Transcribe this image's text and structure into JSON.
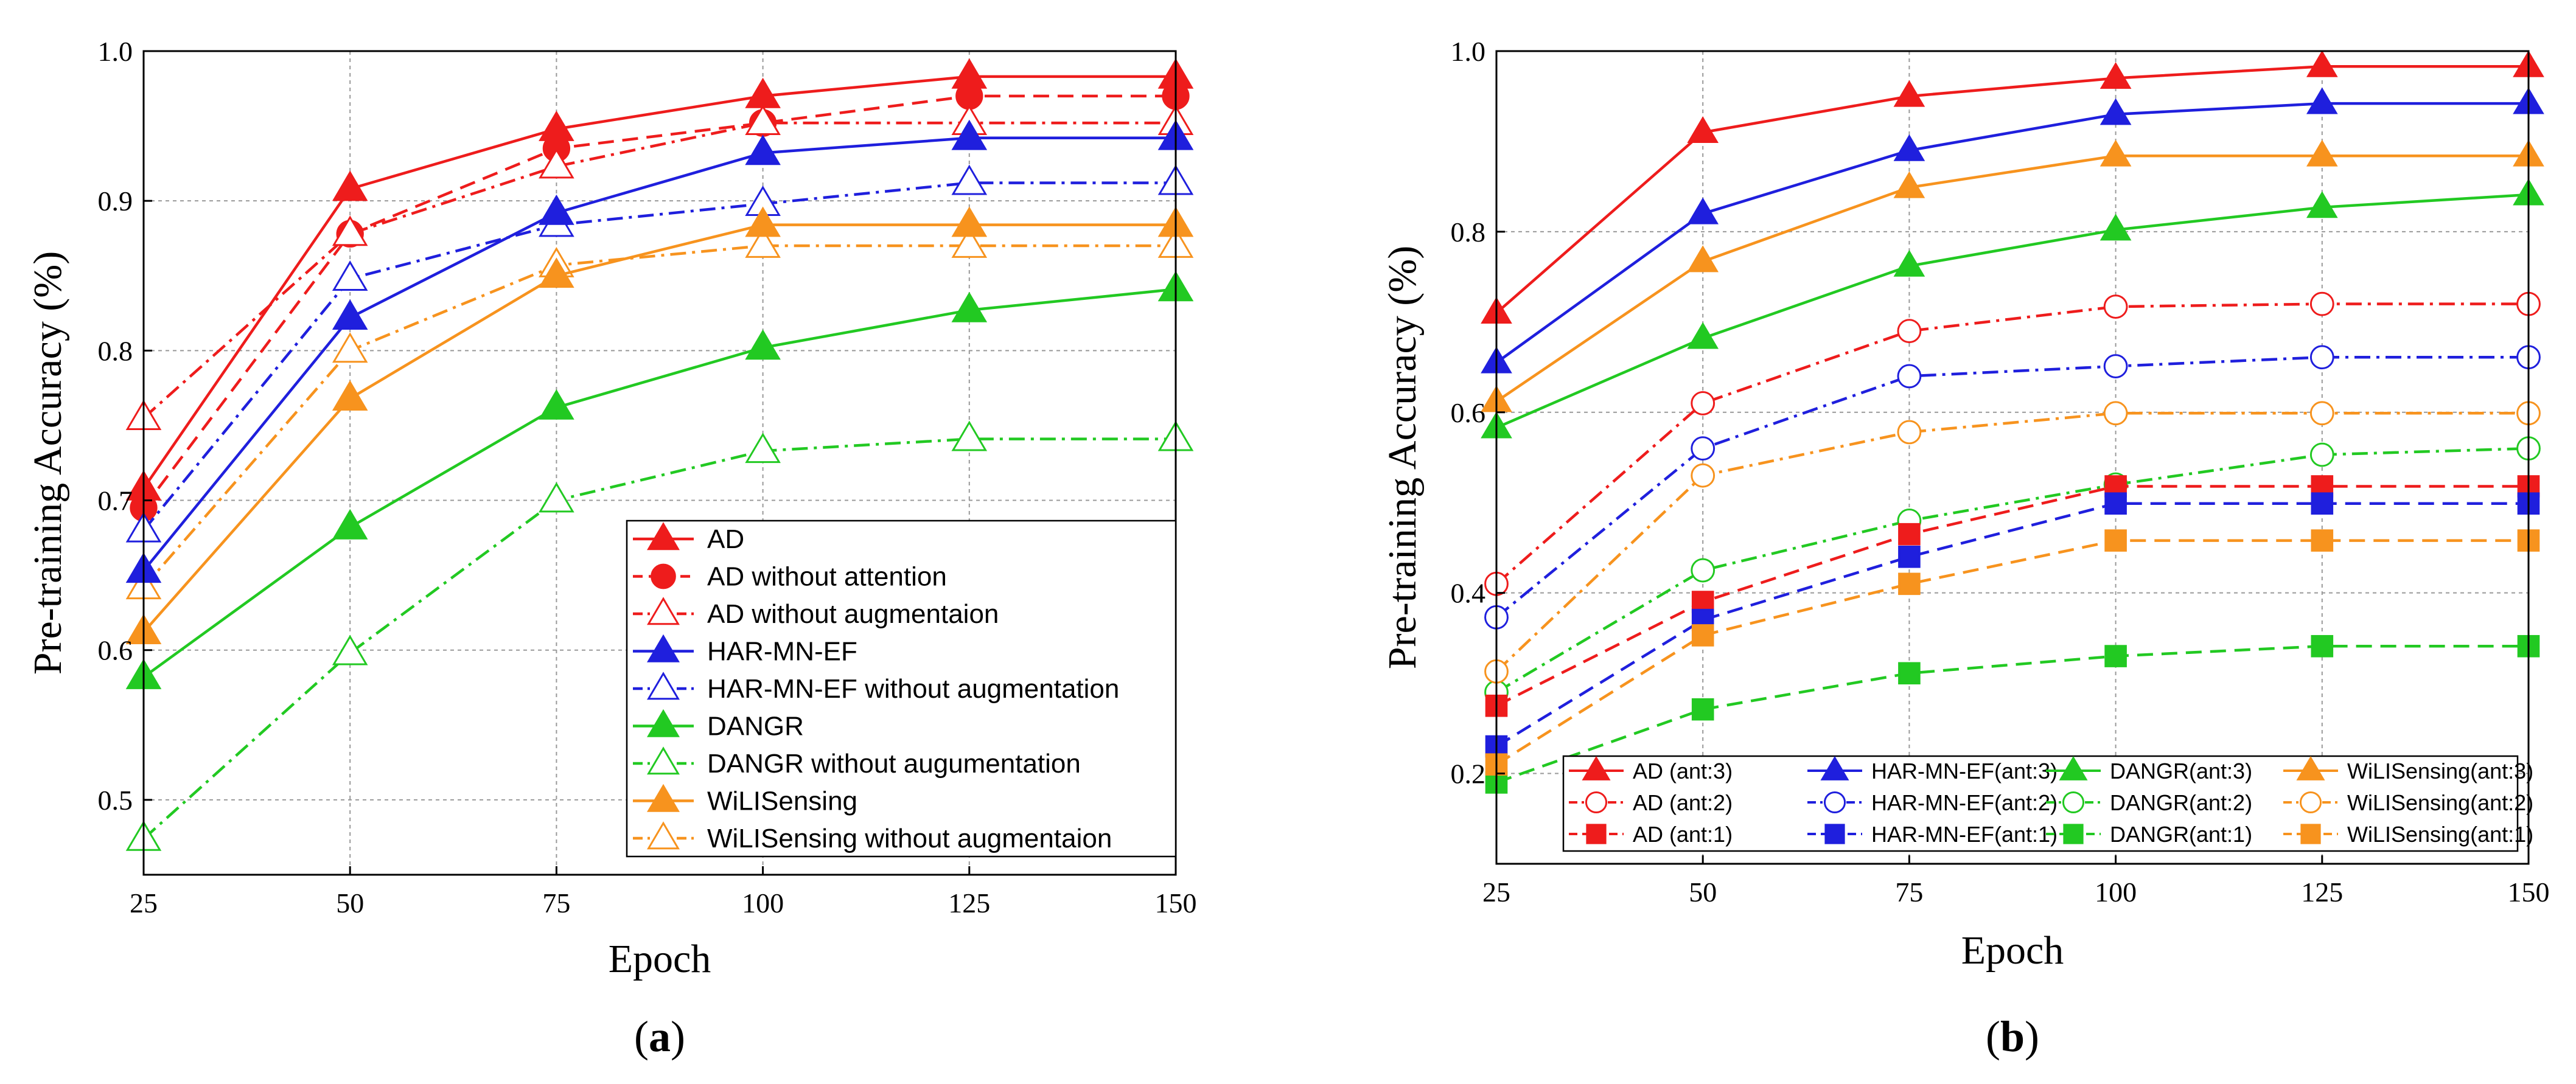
{
  "chart_data": [
    {
      "type": "line",
      "id": "a",
      "caption_label": "a",
      "xlabel": "Epoch",
      "ylabel": "Pre-training Accuracy (%)",
      "x": [
        25,
        50,
        75,
        100,
        125,
        150
      ],
      "x_ticks": [
        "25",
        "50",
        "75",
        "100",
        "125",
        "150"
      ],
      "xlim": [
        25,
        150
      ],
      "ylim": [
        0.45,
        1.0
      ],
      "y_ticks": [
        "0.5",
        "0.6",
        "0.7",
        "0.8",
        "0.9",
        "1.0"
      ],
      "y_tick_values": [
        0.5,
        0.6,
        0.7,
        0.8,
        0.9,
        1.0
      ],
      "grid": true,
      "legend_position": "bottom-right",
      "series": [
        {
          "name": "AD",
          "color": "#ee1c1c",
          "dash": "solid",
          "marker": "triangle",
          "filled": true,
          "values": [
            0.708,
            0.908,
            0.948,
            0.97,
            0.983,
            0.983
          ]
        },
        {
          "name": "AD without attention",
          "color": "#ee1c1c",
          "dash": "dash",
          "marker": "circle",
          "filled": true,
          "values": [
            0.695,
            0.878,
            0.935,
            0.952,
            0.97,
            0.97
          ]
        },
        {
          "name": "AD without augmentaion",
          "color": "#ee1c1c",
          "dashdot": true,
          "dash": "dashdot",
          "marker": "triangle",
          "filled": false,
          "values": [
            0.755,
            0.878,
            0.923,
            0.952,
            0.952,
            0.952
          ]
        },
        {
          "name": "HAR-MN-EF",
          "color": "#1f1fdd",
          "dash": "solid",
          "marker": "triangle",
          "filled": true,
          "values": [
            0.653,
            0.822,
            0.892,
            0.932,
            0.942,
            0.942
          ]
        },
        {
          "name": "HAR-MN-EF without augmentation",
          "color": "#1f1fdd",
          "dash": "dashdot",
          "marker": "triangle",
          "filled": false,
          "values": [
            0.68,
            0.848,
            0.884,
            0.898,
            0.912,
            0.912
          ]
        },
        {
          "name": "DANGR",
          "color": "#22c922",
          "dash": "solid",
          "marker": "triangle",
          "filled": true,
          "values": [
            0.582,
            0.682,
            0.762,
            0.802,
            0.827,
            0.841
          ]
        },
        {
          "name": "DANGR without augumentation",
          "color": "#22c922",
          "dash": "dashdot",
          "marker": "triangle",
          "filled": false,
          "values": [
            0.474,
            0.598,
            0.7,
            0.733,
            0.741,
            0.741
          ]
        },
        {
          "name": "WiLISensing",
          "color": "#f7931e",
          "dash": "solid",
          "marker": "triangle",
          "filled": true,
          "values": [
            0.612,
            0.768,
            0.85,
            0.884,
            0.884,
            0.884
          ]
        },
        {
          "name": "WiLISensing without augmentaion",
          "color": "#f7931e",
          "dash": "dashdot",
          "marker": "triangle",
          "filled": false,
          "values": [
            0.642,
            0.8,
            0.857,
            0.87,
            0.87,
            0.87
          ]
        }
      ]
    },
    {
      "type": "line",
      "id": "b",
      "caption_label": "b",
      "xlabel": "Epoch",
      "ylabel": "Pre-training Accuracy (%)",
      "x": [
        25,
        50,
        75,
        100,
        125,
        150
      ],
      "x_ticks": [
        "25",
        "50",
        "75",
        "100",
        "125",
        "150"
      ],
      "xlim": [
        25,
        150
      ],
      "ylim": [
        0.1,
        1.0
      ],
      "y_ticks": [
        "0.2",
        "0.4",
        "0.6",
        "0.8",
        "1.0"
      ],
      "y_tick_values": [
        0.2,
        0.4,
        0.6,
        0.8,
        1.0
      ],
      "grid": true,
      "legend_position": "bottom",
      "legend_columns": 4,
      "series": [
        {
          "name": "AD (ant:3)",
          "color": "#ee1c1c",
          "dash": "solid",
          "marker": "triangle",
          "filled": true,
          "values": [
            0.71,
            0.91,
            0.95,
            0.97,
            0.983,
            0.983
          ]
        },
        {
          "name": "HAR-MN-EF(ant:3)",
          "color": "#1f1fdd",
          "dash": "solid",
          "marker": "triangle",
          "filled": true,
          "values": [
            0.655,
            0.82,
            0.89,
            0.93,
            0.942,
            0.942
          ]
        },
        {
          "name": "DANGR(ant:3)",
          "color": "#22c922",
          "dash": "solid",
          "marker": "triangle",
          "filled": true,
          "values": [
            0.583,
            0.682,
            0.762,
            0.802,
            0.827,
            0.841
          ]
        },
        {
          "name": "WiLISensing(ant:3)",
          "color": "#f7931e",
          "dash": "solid",
          "marker": "triangle",
          "filled": true,
          "values": [
            0.612,
            0.767,
            0.849,
            0.884,
            0.884,
            0.884
          ]
        },
        {
          "name": "AD (ant:2)",
          "color": "#ee1c1c",
          "dash": "dashdot",
          "marker": "circle",
          "filled": false,
          "values": [
            0.41,
            0.61,
            0.69,
            0.717,
            0.72,
            0.72
          ]
        },
        {
          "name": "HAR-MN-EF(ant:2)",
          "color": "#1f1fdd",
          "dash": "dashdot",
          "marker": "circle",
          "filled": false,
          "values": [
            0.373,
            0.56,
            0.64,
            0.651,
            0.661,
            0.661
          ]
        },
        {
          "name": "DANGR(ant:2)",
          "color": "#22c922",
          "dash": "dashdot",
          "marker": "circle",
          "filled": false,
          "values": [
            0.29,
            0.425,
            0.48,
            0.52,
            0.553,
            0.56
          ]
        },
        {
          "name": "WiLISensing(ant:2)",
          "color": "#f7931e",
          "dash": "dashdot",
          "marker": "circle",
          "filled": false,
          "values": [
            0.313,
            0.53,
            0.578,
            0.599,
            0.599,
            0.599
          ]
        },
        {
          "name": "AD (ant:1)",
          "color": "#ee1c1c",
          "dash": "dash",
          "marker": "square",
          "filled": true,
          "values": [
            0.275,
            0.39,
            0.465,
            0.518,
            0.518,
            0.518
          ]
        },
        {
          "name": "HAR-MN-EF(ant:1)",
          "color": "#1f1fdd",
          "dash": "dash",
          "marker": "square",
          "filled": true,
          "values": [
            0.23,
            0.37,
            0.44,
            0.499,
            0.499,
            0.499
          ]
        },
        {
          "name": "DANGR(ant:1)",
          "color": "#22c922",
          "dash": "dash",
          "marker": "square",
          "filled": true,
          "values": [
            0.19,
            0.271,
            0.311,
            0.33,
            0.341,
            0.341
          ]
        },
        {
          "name": "WiLISensing(ant:1)",
          "color": "#f7931e",
          "dash": "dash",
          "marker": "square",
          "filled": true,
          "values": [
            0.21,
            0.353,
            0.41,
            0.458,
            0.458,
            0.458
          ]
        }
      ]
    }
  ]
}
